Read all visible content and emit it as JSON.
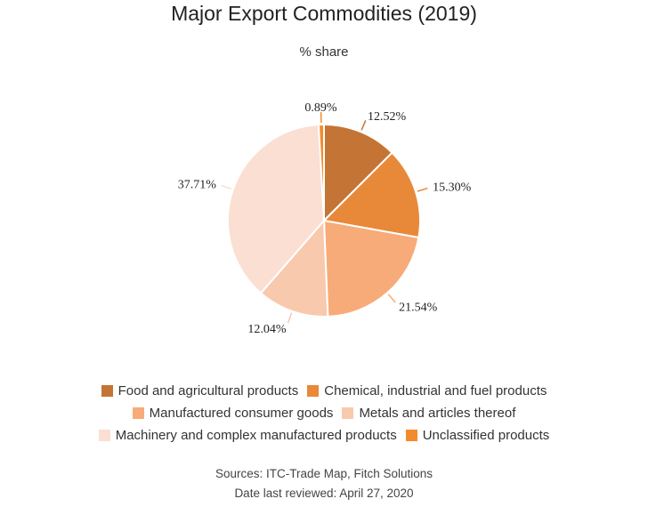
{
  "chart_data": {
    "type": "pie",
    "title": "Major Export Commodities (2019)",
    "subtitle": "% share",
    "categories": [
      "Food and agricultural products",
      "Chemical, industrial and fuel products",
      "Manufactured consumer goods",
      "Metals and articles thereof",
      "Machinery and complex manufactured products",
      "Unclassified products"
    ],
    "values": [
      12.52,
      15.3,
      21.54,
      12.04,
      37.71,
      0.89
    ],
    "value_labels": [
      "12.52%",
      "15.30%",
      "21.54%",
      "12.04%",
      "37.71%",
      "0.89%"
    ],
    "colors": [
      "#c47434",
      "#e8893a",
      "#f7ab78",
      "#f9c9ad",
      "#fadfd2",
      "#f38b2c"
    ],
    "legend_position": "bottom"
  },
  "footer": {
    "sources": "Sources: ITC-Trade Map, Fitch Solutions",
    "reviewed": "Date last reviewed: April 27, 2020"
  }
}
